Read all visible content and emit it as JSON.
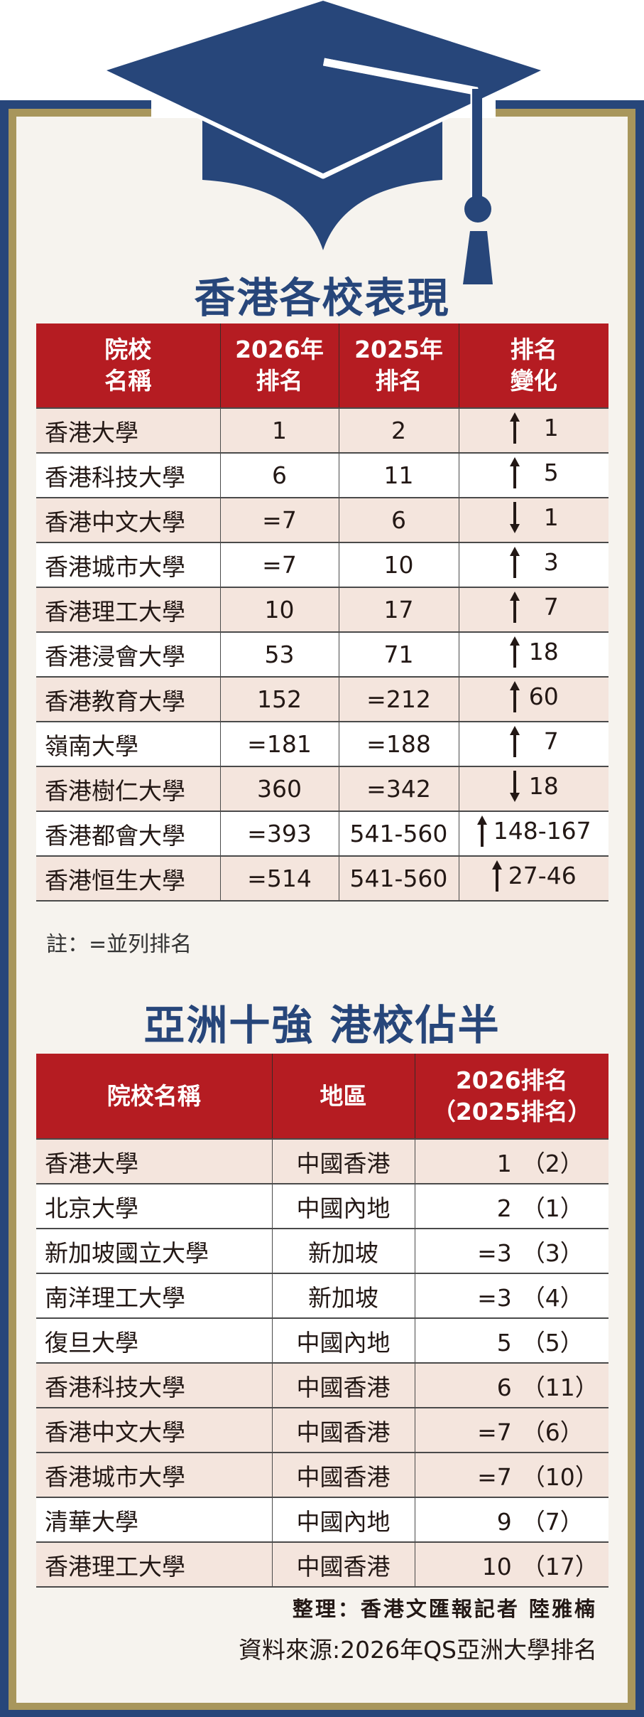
{
  "colors": {
    "navy": "#27467a",
    "gold": "#a8965c",
    "header_red": "#b51c22",
    "row_shade": "#f4e5dd",
    "background": "#f6f3ee"
  },
  "icon": "graduation-cap-icon",
  "section1": {
    "title": "香港各校表現",
    "headers": [
      "院校\n名稱",
      "2026年\n排名",
      "2025年\n排名",
      "排名\n變化"
    ],
    "rows": [
      {
        "name": "香港大學",
        "rank2026": "1",
        "rank2025": "2",
        "direction": "up",
        "change": "1"
      },
      {
        "name": "香港科技大學",
        "rank2026": "6",
        "rank2025": "11",
        "direction": "up",
        "change": "5"
      },
      {
        "name": "香港中文大學",
        "rank2026": "=7",
        "rank2025": "6",
        "direction": "down",
        "change": "1"
      },
      {
        "name": "香港城市大學",
        "rank2026": "=7",
        "rank2025": "10",
        "direction": "up",
        "change": "3"
      },
      {
        "name": "香港理工大學",
        "rank2026": "10",
        "rank2025": "17",
        "direction": "up",
        "change": "7"
      },
      {
        "name": "香港浸會大學",
        "rank2026": "53",
        "rank2025": "71",
        "direction": "up",
        "change": "18"
      },
      {
        "name": "香港教育大學",
        "rank2026": "152",
        "rank2025": "=212",
        "direction": "up",
        "change": "60"
      },
      {
        "name": "嶺南大學",
        "rank2026": "=181",
        "rank2025": "=188",
        "direction": "up",
        "change": "7"
      },
      {
        "name": "香港樹仁大學",
        "rank2026": "360",
        "rank2025": "=342",
        "direction": "down",
        "change": "18"
      },
      {
        "name": "香港都會大學",
        "rank2026": "=393",
        "rank2025": "541-560",
        "direction": "up",
        "change": "148-167"
      },
      {
        "name": "香港恒生大學",
        "rank2026": "=514",
        "rank2025": "541-560",
        "direction": "up",
        "change": "27-46"
      }
    ],
    "note": "註：=並列排名"
  },
  "section2": {
    "title": "亞洲十強 港校佔半",
    "headers": [
      "院校名稱",
      "地區",
      "2026排名\n（2025排名）"
    ],
    "rows": [
      {
        "name": "香港大學",
        "region": "中國香港",
        "rank2026": "1",
        "rank2025": "（2）"
      },
      {
        "name": "北京大學",
        "region": "中國內地",
        "rank2026": "2",
        "rank2025": "（1）"
      },
      {
        "name": "新加坡國立大學",
        "region": "新加坡",
        "rank2026": "=3",
        "rank2025": "（3）"
      },
      {
        "name": "南洋理工大學",
        "region": "新加坡",
        "rank2026": "=3",
        "rank2025": "（4）"
      },
      {
        "name": "復旦大學",
        "region": "中國內地",
        "rank2026": "5",
        "rank2025": "（5）"
      },
      {
        "name": "香港科技大學",
        "region": "中國香港",
        "rank2026": "6",
        "rank2025": "（11）"
      },
      {
        "name": "香港中文大學",
        "region": "中國香港",
        "rank2026": "=7",
        "rank2025": "（6）"
      },
      {
        "name": "香港城市大學",
        "region": "中國香港",
        "rank2026": "=7",
        "rank2025": "（10）"
      },
      {
        "name": "清華大學",
        "region": "中國內地",
        "rank2026": "9",
        "rank2025": "（7）"
      },
      {
        "name": "香港理工大學",
        "region": "中國香港",
        "rank2026": "10",
        "rank2025": "（17）"
      }
    ]
  },
  "footer": {
    "credit": "整理：香港文匯報記者 陸雅楠",
    "source": "資料來源:2026年QS亞洲大學排名"
  }
}
